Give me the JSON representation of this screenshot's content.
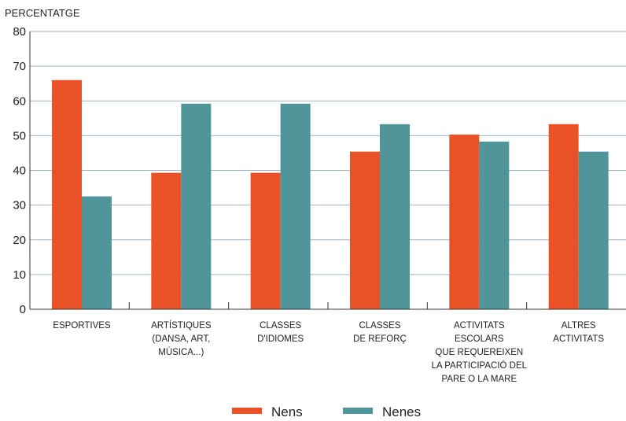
{
  "chart_data": {
    "type": "bar",
    "ylabel": "PERCENTATGE",
    "xlabel": "",
    "ylim": [
      0,
      80
    ],
    "yticks": [
      0,
      10,
      20,
      30,
      40,
      50,
      60,
      70,
      80
    ],
    "grid": true,
    "legend_position": "bottom",
    "categories": [
      [
        "ESPORTIVES"
      ],
      [
        "ARTÍSTIQUES",
        "(DANSA, ART,",
        "MÚSICA...)"
      ],
      [
        "CLASSES",
        "D'IDIOMES"
      ],
      [
        "CLASSES",
        "DE REFORÇ"
      ],
      [
        "ACTIVITATS",
        "ESCOLARS",
        "QUE REQUEREIXEN",
        "LA PARTICIPACIÓ DEL",
        "PARE O LA MARE"
      ],
      [
        "ALTRES",
        "ACTIVITATS"
      ]
    ],
    "series": [
      {
        "name": "Nens",
        "color": "#E95226",
        "values": [
          66,
          39.3,
          39.3,
          45.4,
          50.3,
          53.3
        ]
      },
      {
        "name": "Nenes",
        "color": "#4F9599",
        "values": [
          32.5,
          59.2,
          59.2,
          53.3,
          48.3,
          45.4
        ]
      }
    ],
    "gridline_color": "#9DB4C4",
    "axis_color": "#333333"
  }
}
